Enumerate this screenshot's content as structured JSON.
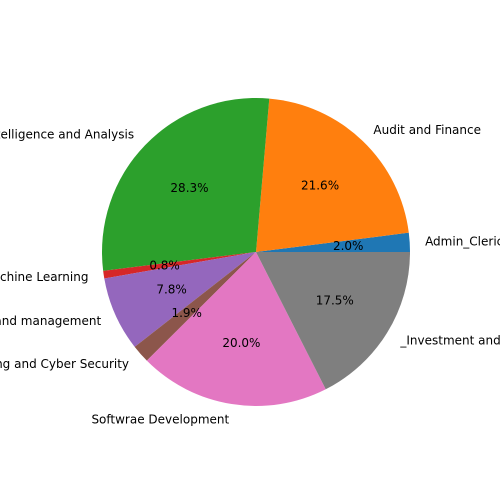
{
  "chart_data": {
    "type": "pie",
    "slices": [
      {
        "label": "Admin_Clerical",
        "pct_label": "2.0%",
        "value": 2.0,
        "color": "#1f77b4"
      },
      {
        "label": "Audit and Finance",
        "pct_label": "21.6%",
        "value": 21.6,
        "color": "#ff7f0e"
      },
      {
        "label": "Business Intelligence and Analysis",
        "pct_label": "28.3%",
        "value": 28.3,
        "color": "#2ca02c"
      },
      {
        "label": "Data Science and Machine Learning",
        "pct_label": "0.8%",
        "value": 0.8,
        "color": "#d62728"
      },
      {
        "label": "Project and management",
        "pct_label": "7.8%",
        "value": 7.8,
        "color": "#9467bd"
      },
      {
        "label": "Networking and Cyber Security",
        "pct_label": "1.9%",
        "value": 1.9,
        "color": "#8c564b"
      },
      {
        "label": "Softwrae Development",
        "pct_label": "20.0%",
        "value": 20.0,
        "color": "#e377c2"
      },
      {
        "label": "_Investment and Banking",
        "pct_label": "17.5%",
        "value": 17.5,
        "color": "#7f7f7f"
      }
    ],
    "start_angle": "0 degrees (3 o'clock), counterclockwise"
  }
}
